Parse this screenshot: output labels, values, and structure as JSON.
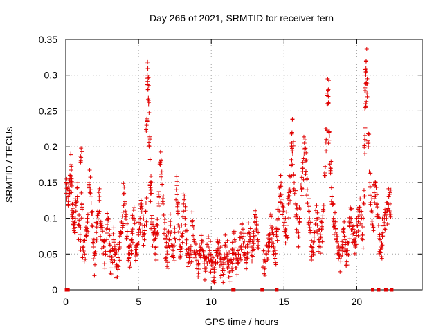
{
  "colors": {
    "series": "#e00000",
    "grid": "#a0a0a0",
    "axis": "#000000"
  },
  "chart_data": {
    "type": "scatter",
    "title": "Day 266 of 2021, SRMTID for receiver fern",
    "xlabel": "GPS time / hours",
    "ylabel": "SRMTID / TECUs",
    "xlim": [
      0,
      24.5
    ],
    "ylim": [
      0,
      0.35
    ],
    "xticks": [
      0,
      5,
      10,
      15,
      20
    ],
    "xtick_labels": [
      "0",
      "5",
      "10",
      "15",
      "20"
    ],
    "yticks": [
      0,
      0.05,
      0.1,
      0.15,
      0.2,
      0.25,
      0.3,
      0.35
    ],
    "ytick_labels": [
      "0",
      "0.05",
      "0.1",
      "0.15",
      "0.2",
      "0.25",
      "0.3",
      "0.35"
    ],
    "grid": true,
    "marker": "plus",
    "profile_description": "Dense scatter of SRMTID values sampled across the day; series points are listed with approximate hour/value pairs.",
    "series": [
      {
        "name": "SRMTID",
        "points": [
          [
            0.05,
            0.135
          ],
          [
            0.15,
            0.13
          ],
          [
            0.25,
            0.14
          ],
          [
            0.3,
            0.16
          ],
          [
            0.35,
            0.175
          ],
          [
            0.4,
            0.155
          ],
          [
            0.45,
            0.12
          ],
          [
            0.5,
            0.1
          ],
          [
            0.55,
            0.09
          ],
          [
            0.6,
            0.08
          ],
          [
            0.7,
            0.11
          ],
          [
            0.8,
            0.13
          ],
          [
            0.9,
            0.09
          ],
          [
            1.0,
            0.07
          ],
          [
            1.05,
            0.185
          ],
          [
            1.1,
            0.12
          ],
          [
            1.2,
            0.06
          ],
          [
            1.3,
            0.05
          ],
          [
            1.4,
            0.075
          ],
          [
            1.5,
            0.1
          ],
          [
            1.6,
            0.15
          ],
          [
            1.7,
            0.14
          ],
          [
            1.8,
            0.09
          ],
          [
            1.9,
            0.06
          ],
          [
            2.0,
            0.035
          ],
          [
            2.1,
            0.08
          ],
          [
            2.2,
            0.11
          ],
          [
            2.3,
            0.125
          ],
          [
            2.4,
            0.09
          ],
          [
            2.5,
            0.07
          ],
          [
            2.6,
            0.06
          ],
          [
            2.7,
            0.05
          ],
          [
            2.8,
            0.085
          ],
          [
            2.9,
            0.1
          ],
          [
            3.0,
            0.065
          ],
          [
            3.1,
            0.04
          ],
          [
            3.2,
            0.055
          ],
          [
            3.3,
            0.07
          ],
          [
            3.4,
            0.05
          ],
          [
            3.5,
            0.035
          ],
          [
            3.6,
            0.045
          ],
          [
            3.7,
            0.06
          ],
          [
            3.8,
            0.08
          ],
          [
            3.9,
            0.09
          ],
          [
            4.0,
            0.135
          ],
          [
            4.1,
            0.11
          ],
          [
            4.2,
            0.075
          ],
          [
            4.3,
            0.06
          ],
          [
            4.4,
            0.05
          ],
          [
            4.5,
            0.07
          ],
          [
            4.6,
            0.085
          ],
          [
            4.7,
            0.1
          ],
          [
            4.8,
            0.06
          ],
          [
            4.9,
            0.05
          ],
          [
            5.0,
            0.08
          ],
          [
            5.1,
            0.1
          ],
          [
            5.2,
            0.12
          ],
          [
            5.3,
            0.09
          ],
          [
            5.4,
            0.07
          ],
          [
            5.5,
            0.11
          ],
          [
            5.55,
            0.23
          ],
          [
            5.6,
            0.3
          ],
          [
            5.65,
            0.28
          ],
          [
            5.7,
            0.265
          ],
          [
            5.75,
            0.2
          ],
          [
            5.8,
            0.15
          ],
          [
            5.85,
            0.14
          ],
          [
            5.9,
            0.1
          ],
          [
            6.0,
            0.08
          ],
          [
            6.1,
            0.07
          ],
          [
            6.2,
            0.06
          ],
          [
            6.3,
            0.09
          ],
          [
            6.4,
            0.13
          ],
          [
            6.5,
            0.175
          ],
          [
            6.6,
            0.165
          ],
          [
            6.7,
            0.12
          ],
          [
            6.8,
            0.085
          ],
          [
            6.9,
            0.06
          ],
          [
            7.0,
            0.05
          ],
          [
            7.1,
            0.07
          ],
          [
            7.2,
            0.09
          ],
          [
            7.3,
            0.065
          ],
          [
            7.4,
            0.045
          ],
          [
            7.5,
            0.08
          ],
          [
            7.6,
            0.14
          ],
          [
            7.7,
            0.11
          ],
          [
            7.8,
            0.07
          ],
          [
            7.9,
            0.06
          ],
          [
            8.0,
            0.075
          ],
          [
            8.1,
            0.12
          ],
          [
            8.2,
            0.1
          ],
          [
            8.3,
            0.065
          ],
          [
            8.4,
            0.045
          ],
          [
            8.5,
            0.04
          ],
          [
            8.6,
            0.055
          ],
          [
            8.7,
            0.09
          ],
          [
            8.8,
            0.07
          ],
          [
            8.9,
            0.05
          ],
          [
            9.0,
            0.04
          ],
          [
            9.1,
            0.035
          ],
          [
            9.2,
            0.05
          ],
          [
            9.3,
            0.065
          ],
          [
            9.4,
            0.055
          ],
          [
            9.5,
            0.04
          ],
          [
            9.6,
            0.03
          ],
          [
            9.7,
            0.045
          ],
          [
            9.8,
            0.06
          ],
          [
            9.9,
            0.05
          ],
          [
            10.0,
            0.04
          ],
          [
            10.1,
            0.03
          ],
          [
            10.2,
            0.025
          ],
          [
            10.3,
            0.04
          ],
          [
            10.4,
            0.055
          ],
          [
            10.5,
            0.065
          ],
          [
            10.6,
            0.05
          ],
          [
            10.7,
            0.035
          ],
          [
            10.8,
            0.03
          ],
          [
            10.9,
            0.045
          ],
          [
            11.0,
            0.06
          ],
          [
            11.1,
            0.05
          ],
          [
            11.2,
            0.035
          ],
          [
            11.3,
            0.03
          ],
          [
            11.4,
            0.04
          ],
          [
            11.5,
            0.055
          ],
          [
            11.6,
            0.07
          ],
          [
            11.7,
            0.05
          ],
          [
            11.8,
            0.04
          ],
          [
            11.9,
            0.05
          ],
          [
            12.0,
            0.06
          ],
          [
            12.1,
            0.075
          ],
          [
            12.2,
            0.065
          ],
          [
            12.3,
            0.05
          ],
          [
            12.4,
            0.045
          ],
          [
            12.5,
            0.06
          ],
          [
            12.6,
            0.08
          ],
          [
            12.7,
            0.07
          ],
          [
            12.8,
            0.06
          ],
          [
            12.9,
            0.075
          ],
          [
            13.0,
            0.095
          ],
          [
            13.1,
            0.085
          ],
          [
            13.2,
            0.07
          ],
          [
            13.6,
            0.04
          ],
          [
            13.7,
            0.03
          ],
          [
            13.8,
            0.05
          ],
          [
            13.9,
            0.06
          ],
          [
            14.0,
            0.07
          ],
          [
            14.1,
            0.09
          ],
          [
            14.2,
            0.08
          ],
          [
            14.3,
            0.06
          ],
          [
            14.4,
            0.055
          ],
          [
            14.5,
            0.075
          ],
          [
            14.6,
            0.1
          ],
          [
            14.7,
            0.13
          ],
          [
            14.8,
            0.15
          ],
          [
            14.9,
            0.12
          ],
          [
            15.0,
            0.1
          ],
          [
            15.1,
            0.085
          ],
          [
            15.2,
            0.09
          ],
          [
            15.3,
            0.12
          ],
          [
            15.4,
            0.14
          ],
          [
            15.5,
            0.175
          ],
          [
            15.55,
            0.22
          ],
          [
            15.6,
            0.19
          ],
          [
            15.7,
            0.15
          ],
          [
            15.8,
            0.12
          ],
          [
            15.9,
            0.1
          ],
          [
            16.0,
            0.08
          ],
          [
            16.1,
            0.1
          ],
          [
            16.2,
            0.14
          ],
          [
            16.3,
            0.17
          ],
          [
            16.4,
            0.205
          ],
          [
            16.5,
            0.18
          ],
          [
            16.6,
            0.14
          ],
          [
            16.7,
            0.11
          ],
          [
            16.8,
            0.08
          ],
          [
            16.9,
            0.06
          ],
          [
            17.0,
            0.05
          ],
          [
            17.1,
            0.08
          ],
          [
            17.2,
            0.1
          ],
          [
            17.3,
            0.09
          ],
          [
            17.4,
            0.07
          ],
          [
            17.5,
            0.06
          ],
          [
            17.6,
            0.085
          ],
          [
            17.7,
            0.11
          ],
          [
            17.8,
            0.16
          ],
          [
            17.9,
            0.21
          ],
          [
            18.0,
            0.26
          ],
          [
            18.05,
            0.28
          ],
          [
            18.1,
            0.22
          ],
          [
            18.2,
            0.17
          ],
          [
            18.3,
            0.13
          ],
          [
            18.4,
            0.1
          ],
          [
            18.5,
            0.09
          ],
          [
            18.6,
            0.07
          ],
          [
            18.7,
            0.06
          ],
          [
            18.8,
            0.05
          ],
          [
            18.9,
            0.04
          ],
          [
            19.0,
            0.06
          ],
          [
            19.1,
            0.08
          ],
          [
            19.2,
            0.07
          ],
          [
            19.3,
            0.05
          ],
          [
            19.4,
            0.065
          ],
          [
            19.5,
            0.09
          ],
          [
            19.6,
            0.1
          ],
          [
            19.7,
            0.085
          ],
          [
            19.8,
            0.07
          ],
          [
            19.9,
            0.06
          ],
          [
            20.0,
            0.08
          ],
          [
            20.1,
            0.095
          ],
          [
            20.2,
            0.11
          ],
          [
            20.3,
            0.09
          ],
          [
            20.4,
            0.07
          ],
          [
            20.5,
            0.12
          ],
          [
            20.55,
            0.21
          ],
          [
            20.6,
            0.26
          ],
          [
            20.62,
            0.3
          ],
          [
            20.65,
            0.32
          ],
          [
            20.7,
            0.275
          ],
          [
            20.8,
            0.2
          ],
          [
            20.9,
            0.15
          ],
          [
            21.0,
            0.11
          ],
          [
            21.1,
            0.09
          ],
          [
            21.2,
            0.13
          ],
          [
            21.3,
            0.15
          ],
          [
            21.4,
            0.12
          ],
          [
            21.5,
            0.09
          ],
          [
            21.6,
            0.07
          ],
          [
            21.7,
            0.06
          ],
          [
            21.8,
            0.08
          ],
          [
            21.9,
            0.1
          ],
          [
            22.0,
            0.09
          ],
          [
            22.1,
            0.11
          ],
          [
            22.2,
            0.13
          ],
          [
            22.3,
            0.12
          ]
        ],
        "zero_points": [
          0.05,
          0.15,
          11.5,
          11.55,
          13.5,
          14.5,
          21.1,
          21.5,
          22.0,
          22.4
        ]
      }
    ]
  }
}
